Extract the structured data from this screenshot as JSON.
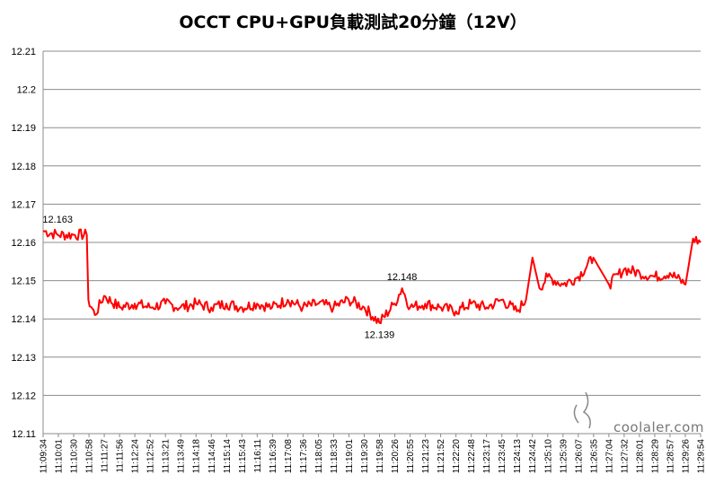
{
  "chart_data": {
    "type": "line",
    "title": "OCCT CPU+GPU負載測試20分鐘（12V）",
    "xlabel": "",
    "ylabel": "",
    "ylim": [
      12.11,
      12.21
    ],
    "yticks": [
      "12.21",
      "12.2",
      "12.19",
      "12.18",
      "12.17",
      "12.16",
      "12.15",
      "12.14",
      "12.13",
      "12.12",
      "12.11"
    ],
    "grid": "horizontal",
    "legend": "none",
    "line_color": "#ff0000",
    "x_range": [
      "11:09:34",
      "11:29:54"
    ],
    "x_ticks": [
      "11:09:34",
      "11:10:01",
      "11:10:30",
      "11:10:58",
      "11:11:27",
      "11:11:56",
      "11:12:24",
      "11:12:52",
      "11:13:21",
      "11:13:49",
      "11:14:18",
      "11:14:46",
      "11:15:14",
      "11:15:43",
      "11:16:11",
      "11:16:39",
      "11:17:08",
      "11:17:36",
      "11:18:05",
      "11:18:33",
      "11:19:01",
      "11:19:30",
      "11:19:58",
      "11:20:26",
      "11:20:55",
      "11:21:23",
      "11:21:52",
      "11:22:20",
      "11:22:48",
      "11:23:17",
      "11:23:45",
      "11:24:13",
      "11:24:42",
      "11:25:10",
      "11:25:39",
      "11:26:07",
      "11:26:35",
      "11:27:04",
      "11:27:32",
      "11:28:01",
      "11:28:29",
      "11:28:57",
      "11:29:26",
      "11:29:54"
    ],
    "series": [
      {
        "name": "",
        "x": [
          "11:09:34",
          "11:10:01",
          "11:10:30",
          "11:10:55",
          "11:10:58",
          "11:11:10",
          "11:11:27",
          "11:11:56",
          "11:12:24",
          "11:12:52",
          "11:13:21",
          "11:13:49",
          "11:14:18",
          "11:14:46",
          "11:15:14",
          "11:15:43",
          "11:16:11",
          "11:16:39",
          "11:17:08",
          "11:17:36",
          "11:18:05",
          "11:18:33",
          "11:19:01",
          "11:19:30",
          "11:19:58",
          "11:20:26",
          "11:20:40",
          "11:20:55",
          "11:21:23",
          "11:21:52",
          "11:22:20",
          "11:22:48",
          "11:23:17",
          "11:23:45",
          "11:24:13",
          "11:24:30",
          "11:24:42",
          "11:24:55",
          "11:25:10",
          "11:25:39",
          "11:26:07",
          "11:26:35",
          "11:27:04",
          "11:27:32",
          "11:28:01",
          "11:28:29",
          "11:28:57",
          "11:29:26",
          "11:29:40",
          "11:29:54"
        ],
        "y": [
          12.163,
          12.162,
          12.162,
          12.162,
          12.145,
          12.141,
          12.146,
          12.143,
          12.144,
          12.143,
          12.144,
          12.143,
          12.144,
          12.143,
          12.144,
          12.143,
          12.144,
          12.143,
          12.145,
          12.143,
          12.144,
          12.143,
          12.145,
          12.143,
          12.139,
          12.144,
          12.148,
          12.143,
          12.144,
          12.143,
          12.142,
          12.144,
          12.143,
          12.145,
          12.142,
          12.145,
          12.156,
          12.148,
          12.151,
          12.149,
          12.151,
          12.156,
          12.149,
          12.153,
          12.152,
          12.151,
          12.152,
          12.149,
          12.161,
          12.16
        ]
      }
    ],
    "annotations": [
      {
        "text": "12.163",
        "x": "11:10:01",
        "y": 12.163
      },
      {
        "text": "12.148",
        "x": "11:20:40",
        "y": 12.148
      },
      {
        "text": "12.139",
        "x": "11:19:58",
        "y": 12.139
      }
    ],
    "watermark": "coolaler.com"
  }
}
